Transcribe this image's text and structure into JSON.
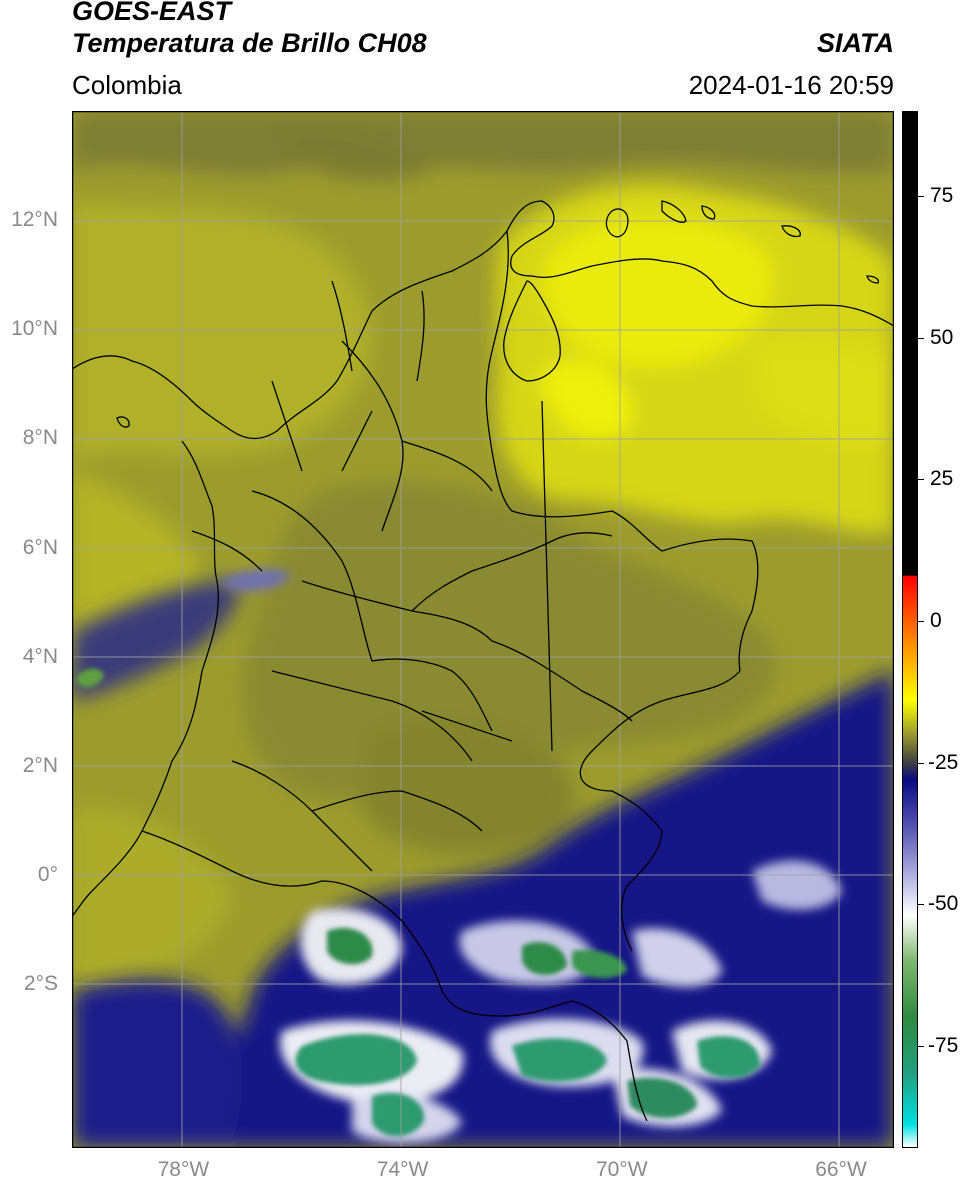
{
  "header": {
    "satellite": "GOES-EAST",
    "product": "Temperatura de Brillo CH08",
    "region": "Colombia",
    "source": "SIATA",
    "timestamp": "2024-01-16 20:59"
  },
  "map_extent": {
    "lon_min": -80.0,
    "lon_max": -65.0,
    "lat_min": -5.0,
    "lat_max": 14.0
  },
  "lat_ticks": [
    {
      "lat": 12,
      "label": "12°N"
    },
    {
      "lat": 10,
      "label": "10°N"
    },
    {
      "lat": 8,
      "label": "8°N"
    },
    {
      "lat": 6,
      "label": "6°N"
    },
    {
      "lat": 4,
      "label": "4°N"
    },
    {
      "lat": 2,
      "label": "2°N"
    },
    {
      "lat": 0,
      "label": "0°"
    },
    {
      "lat": -2,
      "label": "2°S"
    }
  ],
  "lon_ticks": [
    {
      "lon": -78,
      "label": "78°W"
    },
    {
      "lon": -74,
      "label": "74°W"
    },
    {
      "lon": -70,
      "label": "70°W"
    },
    {
      "lon": -66,
      "label": "66°W"
    }
  ],
  "colorbar": {
    "min": -93,
    "max": 90,
    "ticks": [
      {
        "value": 75,
        "label": "75"
      },
      {
        "value": 50,
        "label": "50"
      },
      {
        "value": 25,
        "label": "25"
      },
      {
        "value": 0,
        "label": "0"
      },
      {
        "value": -25,
        "label": "-25"
      },
      {
        "value": -50,
        "label": "-50"
      },
      {
        "value": -75,
        "label": "-75"
      }
    ],
    "stops": [
      {
        "value": -93,
        "color": "#ffffff"
      },
      {
        "value": -89,
        "color": "#00e0e0"
      },
      {
        "value": -80,
        "color": "#20a080"
      },
      {
        "value": -70,
        "color": "#2f8a40"
      },
      {
        "value": -60,
        "color": "#80b870"
      },
      {
        "value": -52,
        "color": "#ffffff"
      },
      {
        "value": -45,
        "color": "#b0b0e0"
      },
      {
        "value": -36,
        "color": "#5050b0"
      },
      {
        "value": -28,
        "color": "#0a0a80"
      },
      {
        "value": -25,
        "color": "#404040"
      },
      {
        "value": -20,
        "color": "#9a9a30"
      },
      {
        "value": -14,
        "color": "#ffff00"
      },
      {
        "value": -5,
        "color": "#ff9a00"
      },
      {
        "value": 8,
        "color": "#ff0000"
      },
      {
        "value": 8.01,
        "color": "#000000"
      },
      {
        "value": 90,
        "color": "#000000"
      }
    ]
  },
  "colors": {
    "olive_dark": "#7c7c32",
    "olive": "#a6a62c",
    "yellow": "#e0e014",
    "cold_blue": "#0a0a82",
    "cold_green": "#2f8a50"
  }
}
